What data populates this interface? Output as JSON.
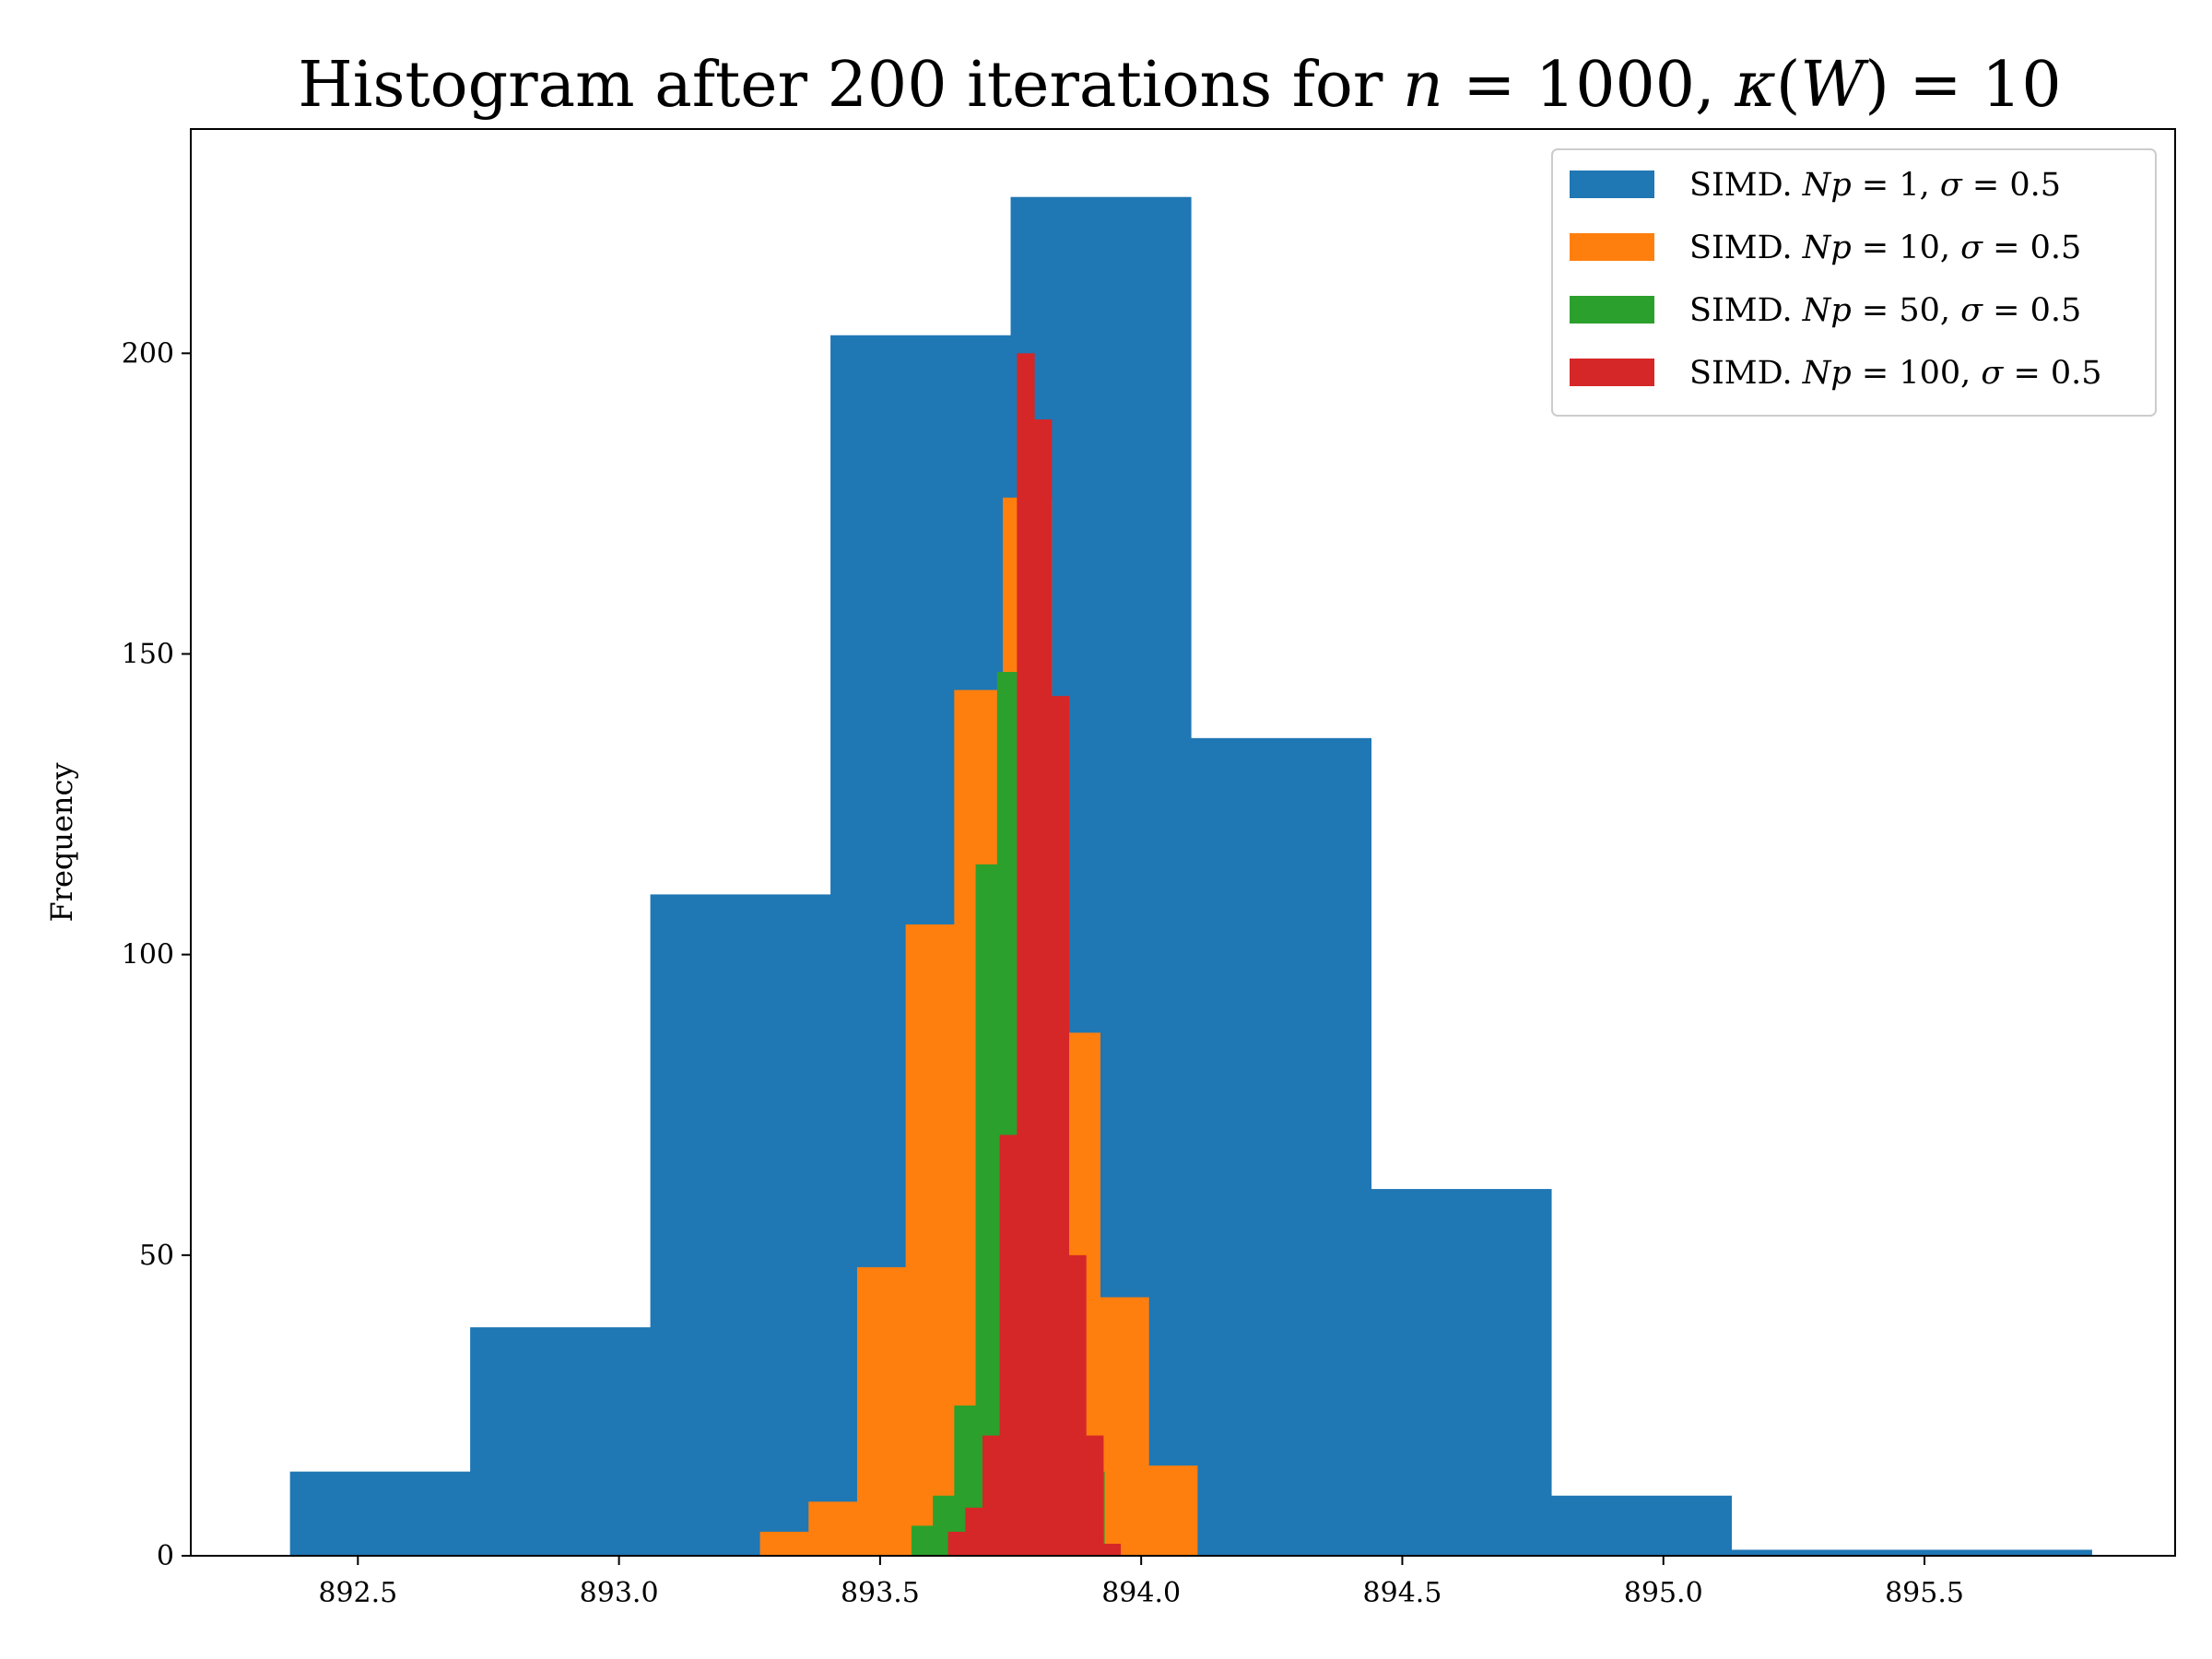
{
  "chart_data": {
    "type": "bar",
    "chart_kind": "histogram",
    "title": "Histogram after 200 iterations for n = 1000, κ(W) = 10",
    "title_parts": {
      "pre": "Histogram after 200 iterations for ",
      "n_var": "n",
      "n_eq": " = 1000, ",
      "kappa": "κ",
      "w_open": "(",
      "w_var": "W",
      "w_close": ") = 10"
    },
    "xlabel": "",
    "ylabel": "Frequency",
    "xlim": [
      892.18,
      895.98
    ],
    "ylim": [
      0,
      237.3
    ],
    "x_ticks": [
      892.5,
      893.0,
      893.5,
      894.0,
      894.5,
      895.0,
      895.5
    ],
    "x_tick_labels": [
      "892.5",
      "893.0",
      "893.5",
      "894.0",
      "894.5",
      "895.0",
      "895.5"
    ],
    "y_ticks": [
      0,
      50,
      100,
      150,
      200
    ],
    "y_tick_labels": [
      "0",
      "50",
      "100",
      "150",
      "200"
    ],
    "grid": false,
    "legend_position": "top-right",
    "series": [
      {
        "name": "SIMD. Np = 1, σ = 0.5",
        "legend": {
          "pre": "SIMD. ",
          "np_var": "Np",
          "eq1": " = ",
          "np_val": "1",
          "sep": ", ",
          "sigma": "σ",
          "eq2": " = ",
          "sigma_val": "0.5"
        },
        "color": "#1f77b4",
        "bin_edges": [
          892.37,
          892.715,
          893.06,
          893.405,
          893.75,
          894.095,
          894.44,
          894.785,
          895.13,
          895.475,
          895.82
        ],
        "values": [
          14,
          38,
          110,
          203,
          226,
          136,
          61,
          10,
          1,
          1
        ]
      },
      {
        "name": "SIMD. Np = 10, σ = 0.5",
        "legend": {
          "pre": "SIMD. ",
          "np_var": "Np",
          "eq1": " = ",
          "np_val": "10",
          "sep": ", ",
          "sigma": "σ",
          "eq2": " = ",
          "sigma_val": "0.5"
        },
        "color": "#ff7f0e",
        "bin_edges": [
          893.27,
          893.363,
          893.456,
          893.549,
          893.642,
          893.735,
          893.828,
          893.921,
          894.014,
          894.107,
          894.2
        ],
        "values": [
          4,
          9,
          48,
          105,
          144,
          176,
          87,
          43,
          15,
          0
        ]
      },
      {
        "name": "SIMD. Np = 50, σ = 0.5",
        "legend": {
          "pre": "SIMD. ",
          "np_var": "Np",
          "eq1": " = ",
          "np_val": "50",
          "sep": ", ",
          "sigma": "σ",
          "eq2": " = ",
          "sigma_val": "0.5"
        },
        "color": "#2ca02c",
        "bin_edges": [
          893.56,
          893.601,
          893.642,
          893.683,
          893.724,
          893.765,
          893.806,
          893.847,
          893.888,
          893.929,
          893.97
        ],
        "values": [
          5,
          10,
          25,
          115,
          147,
          173,
          96,
          46,
          14,
          0
        ]
      },
      {
        "name": "SIMD. Np = 100, σ = 0.5",
        "legend": {
          "pre": "SIMD. ",
          "np_var": "Np",
          "eq1": " = ",
          "np_val": "100",
          "sep": ", ",
          "sigma": "σ",
          "eq2": " = ",
          "sigma_val": "0.5"
        },
        "color": "#d62728",
        "bin_edges": [
          893.63,
          893.663,
          893.696,
          893.729,
          893.762,
          893.795,
          893.828,
          893.861,
          893.894,
          893.927,
          893.96
        ],
        "values": [
          4,
          8,
          20,
          70,
          200,
          189,
          143,
          50,
          20,
          2
        ]
      }
    ]
  }
}
